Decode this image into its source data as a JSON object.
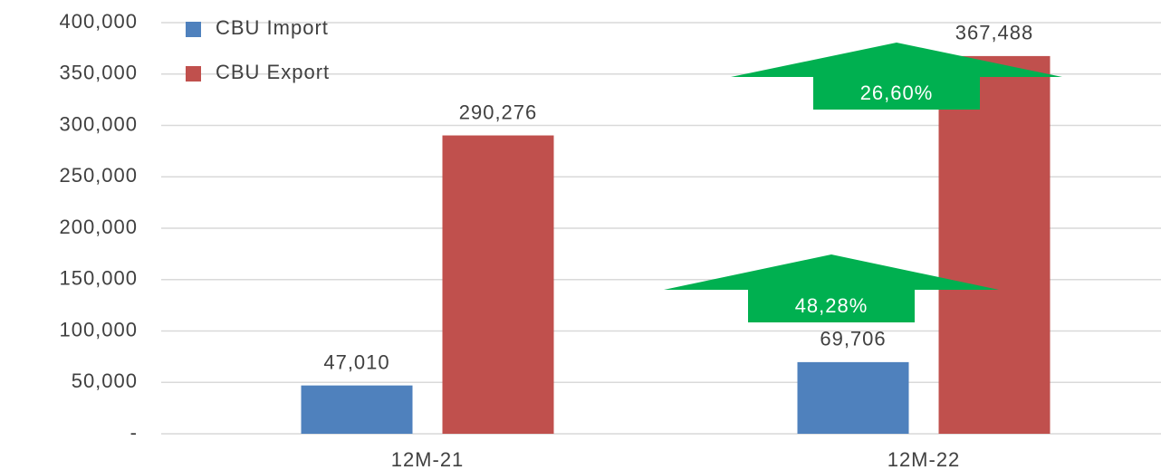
{
  "chart_data": {
    "type": "bar",
    "categories": [
      "12M-21",
      "12M-22"
    ],
    "series": [
      {
        "name": "CBU Import",
        "color": "#4f81bd",
        "values": [
          47010,
          69706
        ],
        "value_labels": [
          "47,010",
          "69,706"
        ]
      },
      {
        "name": "CBU Export",
        "color": "#c0504d",
        "values": [
          290276,
          367488
        ],
        "value_labels": [
          "290,276",
          "367,488"
        ]
      }
    ],
    "ylim": [
      0,
      400000
    ],
    "yticks": [
      {
        "value": 0,
        "label": "-"
      },
      {
        "value": 50000,
        "label": "50,000"
      },
      {
        "value": 100000,
        "label": "100,000"
      },
      {
        "value": 150000,
        "label": "150,000"
      },
      {
        "value": 200000,
        "label": "200,000"
      },
      {
        "value": 250000,
        "label": "250,000"
      },
      {
        "value": 300000,
        "label": "300,000"
      },
      {
        "value": 350000,
        "label": "350,000"
      },
      {
        "value": 400000,
        "label": "400,000"
      }
    ],
    "grid": true,
    "legend": "top-left",
    "annotations": [
      {
        "text": "48,28%",
        "color": "#00b050"
      },
      {
        "text": "26,60%",
        "color": "#00b050"
      }
    ]
  }
}
